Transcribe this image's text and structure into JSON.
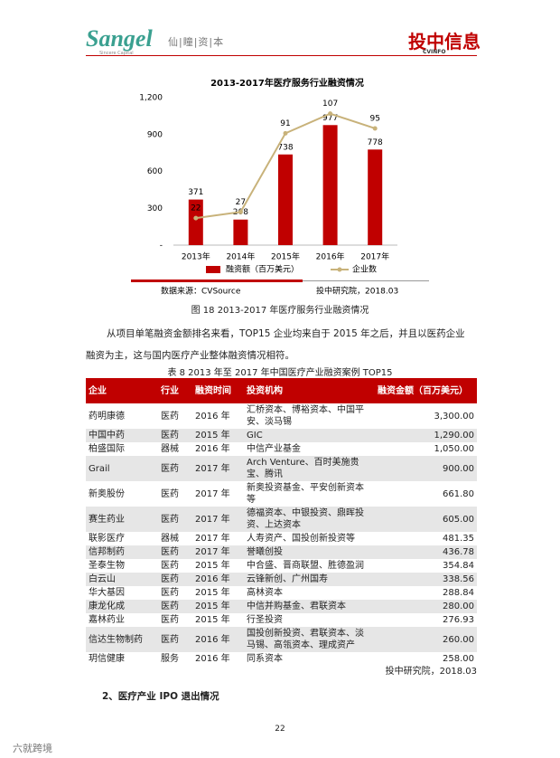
{
  "header": {
    "brand": "Sangel",
    "brand_sub": "Sincere Capital",
    "brand_cn": "仙|瞳|资|本",
    "logo_right": "投中信息",
    "logo_right_sub": "CVINFO"
  },
  "chart_data": {
    "type": "bar",
    "title": "2013-2017年医疗服务行业融资情况",
    "categories": [
      "2013年",
      "2014年",
      "2015年",
      "2016年",
      "2017年"
    ],
    "series": [
      {
        "name": "融资额（百万美元）",
        "type": "bar",
        "color": "#c00000",
        "values": [
          371,
          208,
          738,
          977,
          778
        ]
      },
      {
        "name": "企业数",
        "type": "line",
        "axis": "y2",
        "color": "#c8b27a",
        "values": [
          22,
          27,
          91,
          107,
          95
        ]
      }
    ],
    "ylim": [
      0,
      1200
    ],
    "yticks": [
      {
        "value": 0,
        "label": "-"
      },
      300,
      600,
      900,
      {
        "value": 1200,
        "label": "1,200"
      }
    ],
    "y2lim": [
      0,
      120
    ],
    "grid": false,
    "legend": "bottom",
    "source": "数据来源：CVSource",
    "credit": "投中研究院，2018.03"
  },
  "figure_caption": "图 18 2013-2017 年医疗服务行业融资情况",
  "paragraph": [
    "从项目单笔融资金额排名来看，TOP15 企业均来自于 2015 年之后，并且以医药企业",
    "融资为主，这与国内医疗产业整体融资情况相符。"
  ],
  "table": {
    "caption": "表 8 2013 年至 2017 年中国医疗产业融资案例 TOP15",
    "header": [
      "企业",
      "行业",
      "融资时间",
      "投资机构",
      "融资金额（百万美元）"
    ],
    "rows": [
      [
        "药明康德",
        "医药",
        "2016 年",
        "汇桥资本、博裕资本、中国平安、淡马锡",
        "3,300.00"
      ],
      [
        "中国中药",
        "医药",
        "2015 年",
        "GIC",
        "1,290.00"
      ],
      [
        "柏盛国际",
        "器械",
        "2016 年",
        "中信产业基金",
        "1,050.00"
      ],
      [
        "Grail",
        "医药",
        "2017 年",
        "Arch Venture、百时美施贵宝、腾讯",
        "900.00"
      ],
      [
        "新奥股份",
        "医药",
        "2017 年",
        "新奥投资基金、平安创新资本等",
        "661.80"
      ],
      [
        "赛生药业",
        "医药",
        "2017 年",
        "德福资本、中银投资、鼎晖投资、上达资本",
        "605.00"
      ],
      [
        "联影医疗",
        "器械",
        "2017 年",
        "人寿资产、国投创新投资等",
        "481.35"
      ],
      [
        "信邦制药",
        "医药",
        "2017 年",
        "誉曦创投",
        "436.78"
      ],
      [
        "圣泰生物",
        "医药",
        "2015 年",
        "中合盛、晋商联盟、胜德盈润",
        "354.84"
      ],
      [
        "白云山",
        "医药",
        "2016 年",
        "云锋新创、广州国寿",
        "338.56"
      ],
      [
        "华大基因",
        "医药",
        "2015 年",
        "高林资本",
        "288.84"
      ],
      [
        "康龙化成",
        "医药",
        "2015 年",
        "中信并购基金、君联资本",
        "280.00"
      ],
      [
        "嘉林药业",
        "医药",
        "2015 年",
        "行圣投资",
        "276.93"
      ],
      [
        "信达生物制药",
        "医药",
        "2016 年",
        "国投创新投资、君联资本、淡马锡、高瓴资本、理成资产",
        "260.00"
      ],
      [
        "玥信健康",
        "服务",
        "2016 年",
        "同系资本",
        "258.00"
      ]
    ],
    "source": "投中研究院，2018.03"
  },
  "section_heading": "2、医疗产业 IPO 退出情况",
  "page_number": "22",
  "watermark": "六就跨境"
}
